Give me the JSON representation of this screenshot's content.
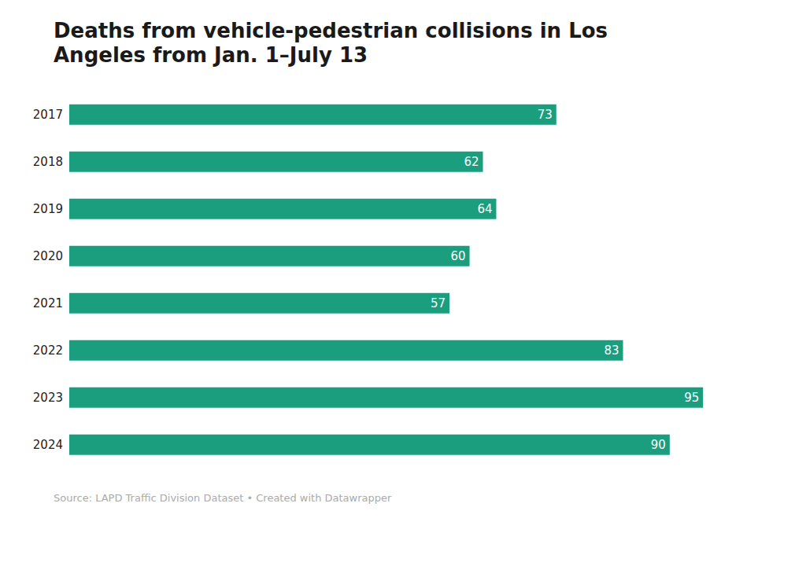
{
  "chart_data": {
    "type": "bar",
    "orientation": "horizontal",
    "title": "Deaths from vehicle-pedestrian collisions in Los\nAngeles from Jan. 1–July 13",
    "annotations": [
      "Source: LAPD Traffic Division Dataset • Created with Datawrapper"
    ],
    "categories": [
      "2017",
      "2018",
      "2019",
      "2020",
      "2021",
      "2022",
      "2023",
      "2024"
    ],
    "values": [
      73,
      62,
      64,
      60,
      57,
      83,
      95,
      90
    ],
    "color": "#1a9e7e",
    "xlim": [
      0,
      105
    ],
    "data_labels": true,
    "tick_labels": "y",
    "grid": false
  }
}
